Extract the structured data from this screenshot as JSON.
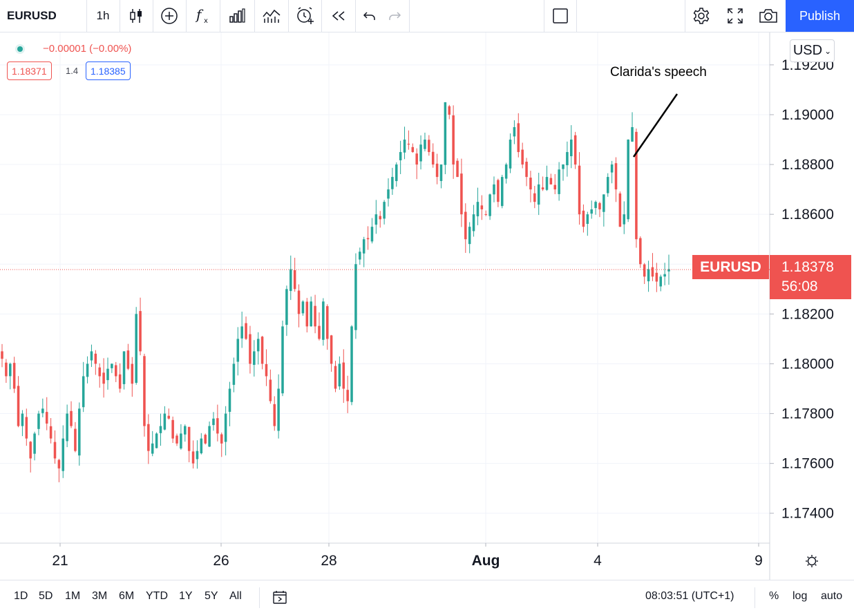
{
  "toolbar": {
    "symbol": "EURUSD",
    "interval": "1h",
    "icons": [
      "candles-icon",
      "add-compare-icon",
      "indicators-icon",
      "financials-icon",
      "templates-icon",
      "alert-icon",
      "replay-icon",
      "undo-icon",
      "redo-icon",
      "layout-icon",
      "settings-icon",
      "fullscreen-icon",
      "snapshot-icon"
    ],
    "publish_label": "Publish"
  },
  "legend": {
    "change": "−0.00001 (−0.00%)",
    "bid": "1.18371",
    "spread": "1.4",
    "ask": "1.18385"
  },
  "price_scale": {
    "currency": "USD",
    "ticks": [
      "1.19200",
      "1.19000",
      "1.18800",
      "1.18600",
      "1.18400",
      "1.18200",
      "1.18000",
      "1.17800",
      "1.17600",
      "1.17400"
    ]
  },
  "last_price": {
    "symbol": "EURUSD",
    "price": "1.18378",
    "countdown": "56:08"
  },
  "time_axis": {
    "ticks": [
      "21",
      "26",
      "28",
      "Aug",
      "4",
      "9"
    ]
  },
  "annotation": {
    "text": "Clarida's speech"
  },
  "bottom_bar": {
    "ranges": [
      "1D",
      "5D",
      "1M",
      "3M",
      "6M",
      "YTD",
      "1Y",
      "5Y",
      "All"
    ],
    "clock": "08:03:51 (UTC+1)",
    "percent_label": "%",
    "log_label": "log",
    "auto_label": "auto"
  },
  "colors": {
    "up": "#26a69a",
    "down": "#ef5350",
    "accent": "#2962ff"
  },
  "chart_data": {
    "type": "candlestick",
    "symbol": "EURUSD",
    "interval": "1h",
    "ylim": [
      1.1728,
      1.1933
    ],
    "x_ticks": [
      "21",
      "26",
      "28",
      "Aug",
      "4",
      "9"
    ],
    "y_ticks": [
      1.192,
      1.19,
      1.188,
      1.186,
      1.184,
      1.182,
      1.18,
      1.178,
      1.176,
      1.174
    ],
    "last_price": 1.18378,
    "path_close": [
      1.1802,
      1.1795,
      1.18,
      1.179,
      1.1775,
      1.178,
      1.177,
      1.1762,
      1.1772,
      1.178,
      1.1782,
      1.1776,
      1.177,
      1.1762,
      1.1758,
      1.177,
      1.178,
      1.1775,
      1.1765,
      1.1782,
      1.1795,
      1.18,
      1.1805,
      1.18,
      1.1795,
      1.1792,
      1.1798,
      1.18,
      1.1795,
      1.179,
      1.1805,
      1.1798,
      1.1792,
      1.182,
      1.1805,
      1.1775,
      1.1765,
      1.1768,
      1.1772,
      1.1775,
      1.178,
      1.1778,
      1.177,
      1.1768,
      1.1772,
      1.1775,
      1.1765,
      1.176,
      1.1765,
      1.177,
      1.1768,
      1.1775,
      1.1778,
      1.1772,
      1.1768,
      1.178,
      1.179,
      1.18,
      1.181,
      1.1815,
      1.181,
      1.18,
      1.1805,
      1.181,
      1.18,
      1.1795,
      1.1785,
      1.1775,
      1.179,
      1.1815,
      1.183,
      1.1838,
      1.183,
      1.182,
      1.1825,
      1.1815,
      1.1825,
      1.1815,
      1.181,
      1.1825,
      1.181,
      1.18,
      1.179,
      1.18,
      1.179,
      1.1785,
      1.1815,
      1.184,
      1.1845,
      1.185,
      1.185,
      1.1855,
      1.186,
      1.1858,
      1.1865,
      1.187,
      1.1875,
      1.188,
      1.1885,
      1.189,
      1.1888,
      1.1885,
      1.188,
      1.1888,
      1.189,
      1.1885,
      1.188,
      1.1875,
      1.188,
      1.1905,
      1.19,
      1.188,
      1.1875,
      1.186,
      1.185,
      1.1855,
      1.186,
      1.1865,
      1.1862,
      1.186,
      1.1868,
      1.1872,
      1.1865,
      1.1875,
      1.188,
      1.189,
      1.1895,
      1.1885,
      1.188,
      1.1875,
      1.187,
      1.1865,
      1.1872,
      1.187,
      1.1875,
      1.1872,
      1.187,
      1.1878,
      1.188,
      1.1885,
      1.189,
      1.188,
      1.186,
      1.1855,
      1.186,
      1.1862,
      1.1865,
      1.1862,
      1.1868,
      1.1875,
      1.188,
      1.187,
      1.1855,
      1.186,
      1.189,
      1.1895,
      1.185,
      1.184,
      1.1835,
      1.1838,
      1.1835,
      1.1833,
      1.1835,
      1.1836,
      1.1838
    ],
    "annotation": "Clarida's speech"
  }
}
